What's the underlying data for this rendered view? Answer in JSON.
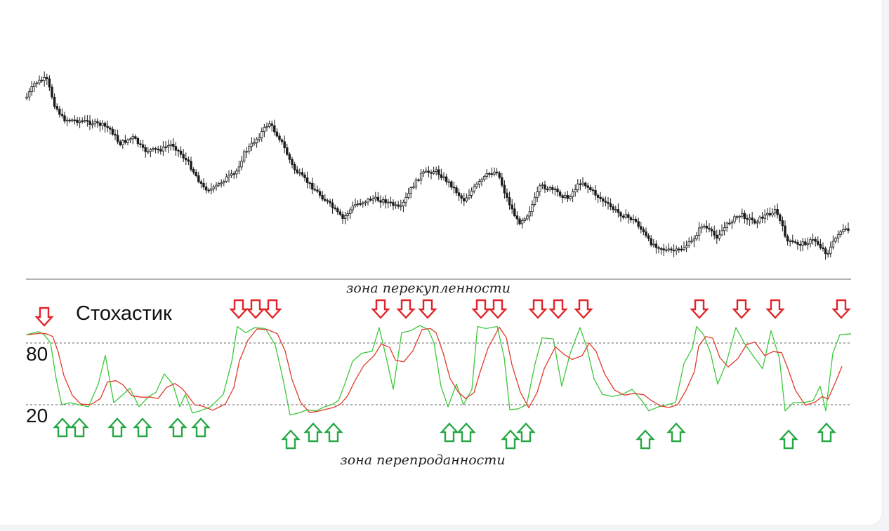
{
  "chart_data": {
    "type": "line",
    "price_panel": {
      "type": "candlestick"
    },
    "oscillator_panel": {
      "title": "Стохастик",
      "levels": [
        80,
        20
      ],
      "level_labels": [
        "80",
        "20"
      ],
      "overbought_label": "зона перекупленности",
      "oversold_label": "зона перепроданности",
      "ylim": [
        0,
        100
      ],
      "series": [
        {
          "color": "#3cc83c"
        },
        {
          "color": "#e03a2a"
        }
      ]
    },
    "markers": {
      "sell_color": "#e0242a",
      "buy_color": "#27a744"
    }
  }
}
